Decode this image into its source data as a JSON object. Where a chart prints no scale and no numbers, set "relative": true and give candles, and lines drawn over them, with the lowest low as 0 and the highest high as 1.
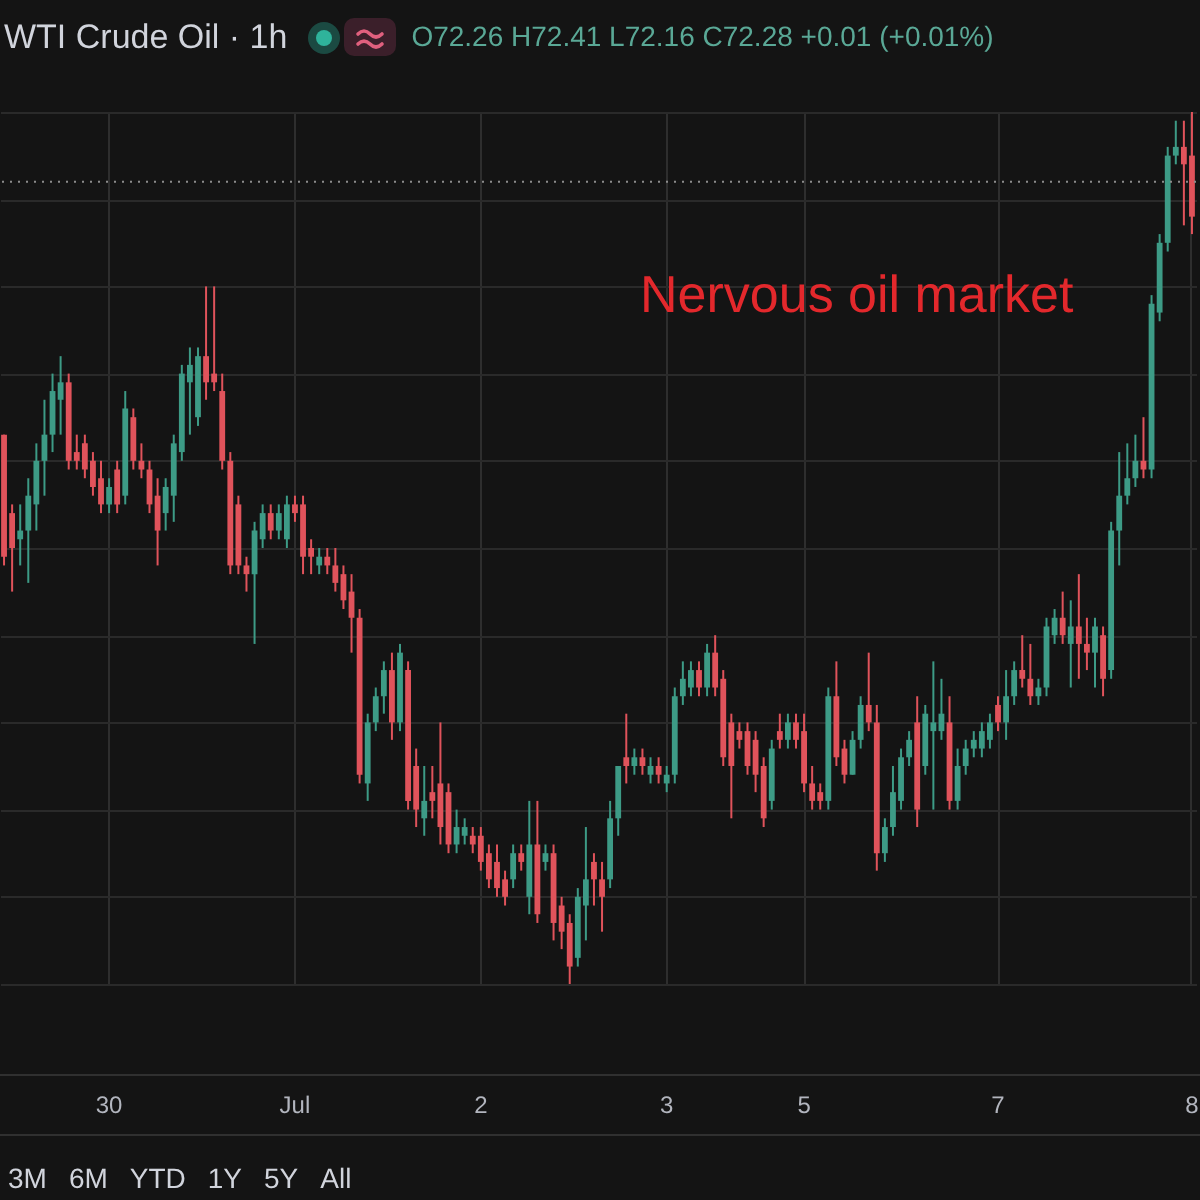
{
  "chart_data": {
    "type": "candlestick",
    "title": "WTI Crude Oil · 1h",
    "annotations": [
      "O72.26 H72.41 L72.16 C72.28 +0.01 (+0.01%)",
      "Nervous oil market",
      "3M",
      "6M",
      "YTD",
      "1Y",
      "5Y",
      "All"
    ],
    "categories": [
      null,
      null,
      null,
      null,
      null,
      null,
      null,
      null,
      null,
      null,
      null,
      null,
      null,
      "30",
      null,
      null,
      null,
      null,
      null,
      null,
      null,
      null,
      null,
      null,
      null,
      null,
      null,
      null,
      null,
      null,
      null,
      null,
      null,
      null,
      null,
      null,
      "Jul",
      null,
      null,
      null,
      null,
      null,
      null,
      null,
      null,
      null,
      null,
      null,
      null,
      null,
      null,
      null,
      null,
      null,
      null,
      null,
      null,
      null,
      null,
      "2",
      null,
      null,
      null,
      null,
      null,
      null,
      null,
      null,
      null,
      null,
      null,
      null,
      null,
      null,
      null,
      null,
      null,
      null,
      null,
      null,
      null,
      null,
      "3",
      null,
      null,
      null,
      null,
      null,
      null,
      null,
      null,
      null,
      null,
      null,
      null,
      null,
      null,
      null,
      null,
      "5",
      null,
      null,
      null,
      null,
      null,
      null,
      null,
      null,
      null,
      null,
      null,
      null,
      null,
      null,
      null,
      null,
      null,
      null,
      null,
      null,
      null,
      null,
      null,
      "7",
      null,
      null,
      null,
      null,
      null,
      null,
      null,
      null,
      null,
      null,
      null,
      null,
      null,
      null,
      null,
      null,
      null,
      null,
      null,
      null,
      null,
      null,
      null,
      "8"
    ],
    "ohlc": [
      [
        0.63,
        0.63,
        0.48,
        0.49
      ],
      [
        0.54,
        0.55,
        0.45,
        0.5
      ],
      [
        0.51,
        0.55,
        0.48,
        0.52
      ],
      [
        0.52,
        0.58,
        0.46,
        0.56
      ],
      [
        0.55,
        0.62,
        0.52,
        0.6
      ],
      [
        0.6,
        0.67,
        0.56,
        0.63
      ],
      [
        0.63,
        0.7,
        0.61,
        0.68
      ],
      [
        0.67,
        0.72,
        0.63,
        0.69
      ],
      [
        0.69,
        0.7,
        0.59,
        0.6
      ],
      [
        0.61,
        0.63,
        0.59,
        0.6
      ],
      [
        0.62,
        0.63,
        0.58,
        0.59
      ],
      [
        0.6,
        0.61,
        0.56,
        0.57
      ],
      [
        0.58,
        0.6,
        0.54,
        0.55
      ],
      [
        0.55,
        0.58,
        0.54,
        0.57
      ],
      [
        0.59,
        0.6,
        0.54,
        0.55
      ],
      [
        0.56,
        0.68,
        0.55,
        0.66
      ],
      [
        0.65,
        0.66,
        0.59,
        0.6
      ],
      [
        0.6,
        0.62,
        0.58,
        0.59
      ],
      [
        0.59,
        0.6,
        0.54,
        0.55
      ],
      [
        0.56,
        0.58,
        0.48,
        0.52
      ],
      [
        0.54,
        0.58,
        0.52,
        0.57
      ],
      [
        0.56,
        0.63,
        0.53,
        0.62
      ],
      [
        0.61,
        0.71,
        0.6,
        0.7
      ],
      [
        0.69,
        0.73,
        0.63,
        0.71
      ],
      [
        0.65,
        0.73,
        0.64,
        0.72
      ],
      [
        0.72,
        0.8,
        0.67,
        0.69
      ],
      [
        0.7,
        0.8,
        0.68,
        0.69
      ],
      [
        0.68,
        0.7,
        0.59,
        0.6
      ],
      [
        0.6,
        0.61,
        0.47,
        0.48
      ],
      [
        0.55,
        0.56,
        0.47,
        0.48
      ],
      [
        0.48,
        0.49,
        0.45,
        0.47
      ],
      [
        0.47,
        0.53,
        0.39,
        0.52
      ],
      [
        0.51,
        0.55,
        0.5,
        0.54
      ],
      [
        0.54,
        0.55,
        0.51,
        0.52
      ],
      [
        0.52,
        0.55,
        0.51,
        0.54
      ],
      [
        0.51,
        0.56,
        0.5,
        0.55
      ],
      [
        0.55,
        0.56,
        0.53,
        0.54
      ],
      [
        0.55,
        0.56,
        0.47,
        0.49
      ],
      [
        0.5,
        0.51,
        0.47,
        0.49
      ],
      [
        0.48,
        0.5,
        0.47,
        0.49
      ],
      [
        0.49,
        0.5,
        0.47,
        0.48
      ],
      [
        0.48,
        0.5,
        0.45,
        0.46
      ],
      [
        0.47,
        0.48,
        0.43,
        0.44
      ],
      [
        0.45,
        0.47,
        0.38,
        0.42
      ],
      [
        0.42,
        0.43,
        0.23,
        0.24
      ],
      [
        0.23,
        0.31,
        0.21,
        0.3
      ],
      [
        0.3,
        0.34,
        0.29,
        0.33
      ],
      [
        0.33,
        0.37,
        0.31,
        0.36
      ],
      [
        0.36,
        0.38,
        0.28,
        0.3
      ],
      [
        0.3,
        0.39,
        0.29,
        0.38
      ],
      [
        0.36,
        0.37,
        0.2,
        0.21
      ],
      [
        0.25,
        0.27,
        0.18,
        0.2
      ],
      [
        0.19,
        0.25,
        0.17,
        0.21
      ],
      [
        0.22,
        0.25,
        0.19,
        0.21
      ],
      [
        0.23,
        0.3,
        0.16,
        0.18
      ],
      [
        0.22,
        0.23,
        0.15,
        0.16
      ],
      [
        0.16,
        0.2,
        0.15,
        0.18
      ],
      [
        0.17,
        0.19,
        0.16,
        0.18
      ],
      [
        0.17,
        0.18,
        0.15,
        0.16
      ],
      [
        0.17,
        0.18,
        0.13,
        0.14
      ],
      [
        0.15,
        0.16,
        0.11,
        0.12
      ],
      [
        0.14,
        0.16,
        0.1,
        0.11
      ],
      [
        0.12,
        0.13,
        0.09,
        0.1
      ],
      [
        0.12,
        0.16,
        0.11,
        0.15
      ],
      [
        0.15,
        0.16,
        0.13,
        0.14
      ],
      [
        0.1,
        0.21,
        0.08,
        0.16
      ],
      [
        0.16,
        0.21,
        0.07,
        0.08
      ],
      [
        0.14,
        0.16,
        0.13,
        0.15
      ],
      [
        0.15,
        0.16,
        0.05,
        0.07
      ],
      [
        0.09,
        0.1,
        0.04,
        0.06
      ],
      [
        0.07,
        0.08,
        0,
        0.02
      ],
      [
        0.03,
        0.11,
        0.02,
        0.1
      ],
      [
        0.09,
        0.18,
        0.05,
        0.12
      ],
      [
        0.14,
        0.15,
        0.09,
        0.12
      ],
      [
        0.12,
        0.14,
        0.06,
        0.1
      ],
      [
        0.12,
        0.21,
        0.11,
        0.19
      ],
      [
        0.19,
        0.25,
        0.17,
        0.25
      ],
      [
        0.26,
        0.31,
        0.23,
        0.25
      ],
      [
        0.25,
        0.27,
        0.24,
        0.26
      ],
      [
        0.26,
        0.27,
        0.24,
        0.25
      ],
      [
        0.24,
        0.26,
        0.23,
        0.25
      ],
      [
        0.25,
        0.26,
        0.23,
        0.24
      ],
      [
        0.23,
        0.25,
        0.22,
        0.24
      ],
      [
        0.24,
        0.34,
        0.23,
        0.33
      ],
      [
        0.33,
        0.37,
        0.32,
        0.35
      ],
      [
        0.34,
        0.37,
        0.33,
        0.36
      ],
      [
        0.36,
        0.37,
        0.33,
        0.34
      ],
      [
        0.34,
        0.39,
        0.33,
        0.38
      ],
      [
        0.38,
        0.4,
        0.33,
        0.34
      ],
      [
        0.35,
        0.36,
        0.25,
        0.26
      ],
      [
        0.3,
        0.31,
        0.19,
        0.25
      ],
      [
        0.29,
        0.3,
        0.27,
        0.28
      ],
      [
        0.29,
        0.3,
        0.24,
        0.25
      ],
      [
        0.28,
        0.29,
        0.22,
        0.24
      ],
      [
        0.25,
        0.26,
        0.18,
        0.19
      ],
      [
        0.21,
        0.28,
        0.2,
        0.27
      ],
      [
        0.29,
        0.31,
        0.27,
        0.28
      ],
      [
        0.28,
        0.31,
        0.27,
        0.3
      ],
      [
        0.3,
        0.31,
        0.27,
        0.28
      ],
      [
        0.29,
        0.31,
        0.22,
        0.23
      ],
      [
        0.23,
        0.25,
        0.2,
        0.21
      ],
      [
        0.22,
        0.23,
        0.2,
        0.21
      ],
      [
        0.21,
        0.34,
        0.2,
        0.33
      ],
      [
        0.33,
        0.37,
        0.25,
        0.26
      ],
      [
        0.27,
        0.28,
        0.23,
        0.24
      ],
      [
        0.24,
        0.29,
        0.24,
        0.28
      ],
      [
        0.28,
        0.33,
        0.27,
        0.32
      ],
      [
        0.32,
        0.38,
        0.29,
        0.3
      ],
      [
        0.3,
        0.32,
        0.13,
        0.15
      ],
      [
        0.15,
        0.19,
        0.14,
        0.18
      ],
      [
        0.18,
        0.25,
        0.17,
        0.22
      ],
      [
        0.21,
        0.27,
        0.2,
        0.26
      ],
      [
        0.26,
        0.29,
        0.25,
        0.28
      ],
      [
        0.3,
        0.33,
        0.18,
        0.2
      ],
      [
        0.25,
        0.32,
        0.24,
        0.31
      ],
      [
        0.29,
        0.37,
        0.2,
        0.3
      ],
      [
        0.29,
        0.35,
        0.28,
        0.31
      ],
      [
        0.3,
        0.33,
        0.2,
        0.21
      ],
      [
        0.21,
        0.27,
        0.2,
        0.25
      ],
      [
        0.25,
        0.28,
        0.24,
        0.27
      ],
      [
        0.27,
        0.29,
        0.26,
        0.28
      ],
      [
        0.27,
        0.3,
        0.26,
        0.29
      ],
      [
        0.28,
        0.31,
        0.27,
        0.3
      ],
      [
        0.32,
        0.33,
        0.29,
        0.3
      ],
      [
        0.3,
        0.36,
        0.28,
        0.33
      ],
      [
        0.33,
        0.37,
        0.32,
        0.36
      ],
      [
        0.36,
        0.4,
        0.34,
        0.35
      ],
      [
        0.35,
        0.39,
        0.32,
        0.33
      ],
      [
        0.33,
        0.35,
        0.32,
        0.34
      ],
      [
        0.34,
        0.42,
        0.33,
        0.41
      ],
      [
        0.4,
        0.43,
        0.39,
        0.42
      ],
      [
        0.42,
        0.45,
        0.39,
        0.4
      ],
      [
        0.39,
        0.44,
        0.34,
        0.41
      ],
      [
        0.41,
        0.47,
        0.35,
        0.39
      ],
      [
        0.39,
        0.42,
        0.36,
        0.38
      ],
      [
        0.38,
        0.42,
        0.34,
        0.41
      ],
      [
        0.4,
        0.41,
        0.33,
        0.35
      ],
      [
        0.36,
        0.53,
        0.35,
        0.52
      ],
      [
        0.52,
        0.61,
        0.48,
        0.56
      ],
      [
        0.56,
        0.62,
        0.55,
        0.58
      ],
      [
        0.58,
        0.63,
        0.57,
        0.6
      ],
      [
        0.6,
        0.65,
        0.58,
        0.59
      ],
      [
        0.59,
        0.79,
        0.58,
        0.78
      ],
      [
        0.77,
        0.86,
        0.76,
        0.85
      ],
      [
        0.85,
        0.96,
        0.84,
        0.95
      ],
      [
        0.95,
        0.99,
        0.94,
        0.96
      ],
      [
        0.96,
        0.99,
        0.87,
        0.94
      ],
      [
        0.95,
        1,
        0.86,
        0.88
      ]
    ],
    "colors": [
      "#e0535b",
      "#e0535b",
      "#3d9b86",
      "#3d9b86",
      "#3d9b86",
      "#3d9b86",
      "#3d9b86",
      "#3d9b86",
      "#e0535b",
      "#e0535b",
      "#e0535b",
      "#e0535b",
      "#e0535b",
      "#3d9b86",
      "#e0535b",
      "#3d9b86",
      "#e0535b",
      "#e0535b",
      "#e0535b",
      "#e0535b",
      "#3d9b86",
      "#3d9b86",
      "#3d9b86",
      "#3d9b86",
      "#3d9b86",
      "#e0535b",
      "#e0535b",
      "#e0535b",
      "#e0535b",
      "#e0535b",
      "#e0535b",
      "#3d9b86",
      "#3d9b86",
      "#e0535b",
      "#3d9b86",
      "#3d9b86",
      "#e0535b",
      "#e0535b",
      "#e0535b",
      "#3d9b86",
      "#e0535b",
      "#e0535b",
      "#e0535b",
      "#e0535b",
      "#e0535b",
      "#3d9b86",
      "#3d9b86",
      "#3d9b86",
      "#e0535b",
      "#3d9b86",
      "#e0535b",
      "#e0535b",
      "#3d9b86",
      "#e0535b",
      "#e0535b",
      "#e0535b",
      "#3d9b86",
      "#3d9b86",
      "#e0535b",
      "#e0535b",
      "#e0535b",
      "#e0535b",
      "#e0535b",
      "#3d9b86",
      "#e0535b",
      "#3d9b86",
      "#e0535b",
      "#3d9b86",
      "#e0535b",
      "#e0535b",
      "#e0535b",
      "#3d9b86",
      "#3d9b86",
      "#e0535b",
      "#e0535b",
      "#3d9b86",
      "#3d9b86",
      "#e0535b",
      "#3d9b86",
      "#e0535b",
      "#3d9b86",
      "#e0535b",
      "#3d9b86",
      "#3d9b86",
      "#3d9b86",
      "#3d9b86",
      "#e0535b",
      "#3d9b86",
      "#e0535b",
      "#e0535b",
      "#e0535b",
      "#e0535b",
      "#e0535b",
      "#e0535b",
      "#e0535b",
      "#3d9b86",
      "#e0535b",
      "#3d9b86",
      "#e0535b",
      "#e0535b",
      "#e0535b",
      "#e0535b",
      "#3d9b86",
      "#e0535b",
      "#e0535b",
      "#3d9b86",
      "#3d9b86",
      "#e0535b",
      "#e0535b",
      "#3d9b86",
      "#3d9b86",
      "#3d9b86",
      "#3d9b86",
      "#e0535b",
      "#3d9b86",
      "#3d9b86",
      "#3d9b86",
      "#e0535b",
      "#3d9b86",
      "#3d9b86",
      "#3d9b86",
      "#3d9b86",
      "#3d9b86",
      "#e0535b",
      "#3d9b86",
      "#3d9b86",
      "#e0535b",
      "#e0535b",
      "#3d9b86",
      "#3d9b86",
      "#3d9b86",
      "#e0535b",
      "#3d9b86",
      "#e0535b",
      "#e0535b",
      "#3d9b86",
      "#e0535b",
      "#3d9b86",
      "#3d9b86",
      "#3d9b86",
      "#3d9b86",
      "#e0535b",
      "#3d9b86",
      "#3d9b86",
      "#3d9b86",
      "#3d9b86",
      "#e0535b",
      "#e0535b"
    ],
    "relative": true,
    "ref_lines": [
      {
        "axis": "y",
        "value": 0.92,
        "color": "#8c8c8c",
        "line_style": "dotted"
      }
    ],
    "grid": true,
    "tick_labels": "x"
  }
}
